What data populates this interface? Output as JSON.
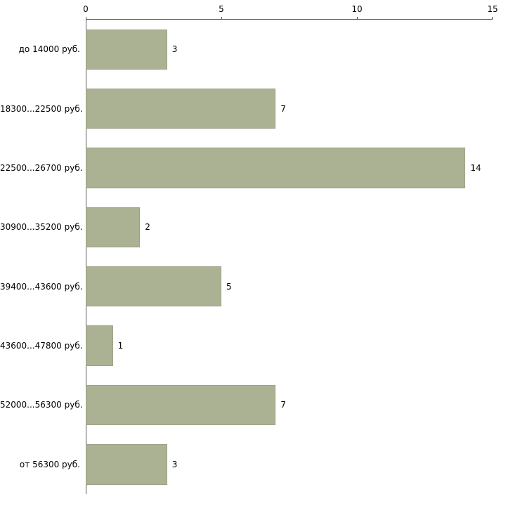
{
  "chart_data": {
    "type": "bar",
    "orientation": "horizontal",
    "title": "",
    "xlabel": "",
    "ylabel": "",
    "categories": [
      "до 14000 руб.",
      "18300...22500 руб.",
      "22500...26700 руб.",
      "30900...35200 руб.",
      "39400...43600 руб.",
      "43600...47800 руб.",
      "52000...56300 руб.",
      "от 56300 руб."
    ],
    "values": [
      3,
      7,
      14,
      2,
      5,
      1,
      7,
      3
    ],
    "data_labels": [
      "3",
      "7",
      "14",
      "2",
      "5",
      "1",
      "7",
      "3"
    ],
    "xlim": [
      0,
      15
    ],
    "x_ticks": [
      "0",
      "5",
      "10",
      "15"
    ],
    "grid": false,
    "legend": false,
    "colors": {
      "bar_fill": "#abb294",
      "bar_border": "#9aa186",
      "axis": "#595959",
      "text": "#000000",
      "background": "#ffffff"
    }
  }
}
